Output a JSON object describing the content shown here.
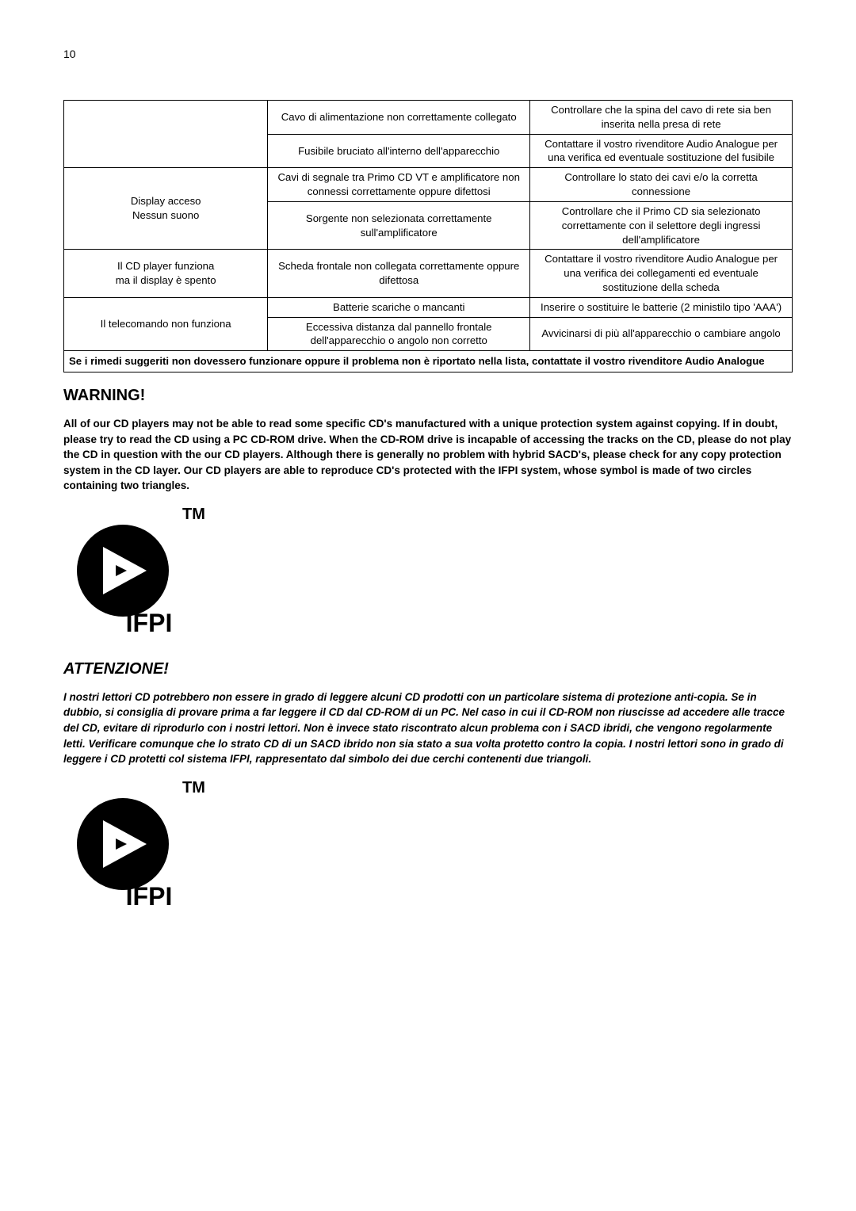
{
  "page_number": "10",
  "table": {
    "rows": [
      {
        "c0": "",
        "c1": "Cavo di alimentazione non correttamente collegato",
        "c2": "Controllare che la spina del cavo di rete sia ben inserita nella presa di rete"
      },
      {
        "c0": "",
        "c1": "Fusibile bruciato all'interno dell'apparecchio",
        "c2": "Contattare il vostro rivenditore Audio Analogue per una verifica ed eventuale sostituzione del fusibile"
      },
      {
        "c0": "Display acceso\nNessun suono",
        "c1": "Cavi di segnale tra Primo CD VT e amplificatore non connessi correttamente oppure difettosi",
        "c2": "Controllare lo stato dei cavi e/o la corretta connessione"
      },
      {
        "c0": "",
        "c1": "Sorgente non selezionata correttamente sull'amplificatore",
        "c2": "Controllare  che il Primo CD sia selezionato correttamente con il selettore degli ingressi dell'amplificatore"
      },
      {
        "c0": "Il CD player funziona\nma il display è spento",
        "c1": "Scheda frontale non collegata correttamente oppure difettosa",
        "c2": "Contattare il vostro rivenditore Audio Analogue per una verifica dei collegamenti ed eventuale sostituzione della scheda"
      },
      {
        "c0": "Il telecomando non funziona",
        "c1": "Batterie scariche o mancanti",
        "c2": "Inserire o sostituire le batterie (2 ministilo tipo 'AAA')"
      },
      {
        "c0": "",
        "c1": "Eccessiva distanza dal pannello frontale dell'apparecchio o angolo non corretto",
        "c2": "Avvicinarsi di più all'apparecchio o cambiare angolo"
      }
    ],
    "footer": "Se i rimedi suggeriti non dovessero funzionare oppure il problema non è riportato nella lista, contattate il vostro rivenditore Audio Analogue"
  },
  "warning_heading": "WARNING!",
  "warning_body": "All of our CD players may not be able to read some specific CD's manufactured with a unique protection system against copying. If in doubt, please try to read the CD using a PC CD-ROM drive. When the CD-ROM drive is incapable of accessing the tracks on the CD, please do not play the CD in question with the our CD players. Although there is generally no problem with hybrid SACD's, please check for any copy protection system in the CD layer. Our CD players are able to reproduce CD's protected with the IFPI system, whose symbol is made of two circles containing two triangles.",
  "attenzione_heading": "ATTENZIONE!",
  "attenzione_body": "I nostri lettori CD potrebbero non essere in grado di leggere alcuni CD prodotti con un particolare sistema di protezione anti-copia. Se in dubbio, si consiglia di provare prima a far leggere il CD dal CD-ROM di un PC. Nel caso in cui il CD-ROM non riuscisse ad accedere alle tracce del CD, evitare di riprodurlo con i nostri lettori. Non è invece stato riscontrato alcun problema con i SACD ibridi, che vengono regolarmente letti. Verificare comunque che lo strato CD di un SACD ibrido non sia stato a sua volta protetto contro la copia.  I nostri lettori sono in grado di leggere i CD protetti col sistema IFPI, rappresentato dal simbolo dei due cerchi contenenti due triangoli.",
  "logo": {
    "tm": "TM",
    "ifpi": "IFPI"
  }
}
